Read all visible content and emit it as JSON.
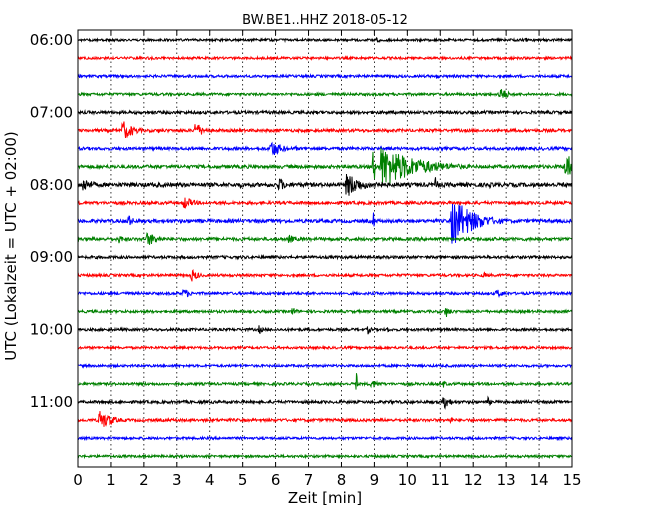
{
  "chart_data": {
    "type": "line",
    "title": "BW.BE1..HHZ 2018-05-12",
    "xlabel": "Zeit  [min]",
    "ylabel": "UTC (Lokalzeit = UTC + 02:00)",
    "xlim": [
      0,
      15
    ],
    "x_ticks": [
      "0",
      "1",
      "2",
      "3",
      "4",
      "5",
      "6",
      "7",
      "8",
      "9",
      "10",
      "11",
      "12",
      "13",
      "14",
      "15"
    ],
    "y_ticks": [
      "06:00",
      "07:00",
      "08:00",
      "09:00",
      "10:00",
      "11:00"
    ],
    "grid": true,
    "colors": [
      "#000000",
      "#ff0000",
      "#0000ff",
      "#008000"
    ],
    "trace_interval_min": 15,
    "start_time": "06:00",
    "traces": [
      {
        "start": "06:00",
        "color": "#000000",
        "noise": 1.2,
        "events": [
          {
            "t": 9.05,
            "amp": 6,
            "dur": 0.15
          },
          {
            "t": 13.6,
            "amp": 3,
            "dur": 0.1
          }
        ]
      },
      {
        "start": "06:15",
        "color": "#ff0000",
        "noise": 1.2,
        "events": []
      },
      {
        "start": "06:30",
        "color": "#0000ff",
        "noise": 1.3,
        "events": [
          {
            "t": 10.9,
            "amp": 4,
            "dur": 0.1
          }
        ]
      },
      {
        "start": "06:45",
        "color": "#008000",
        "noise": 1.3,
        "events": [
          {
            "t": 12.8,
            "amp": 9,
            "dur": 0.4
          }
        ]
      },
      {
        "start": "07:00",
        "color": "#000000",
        "noise": 1.5,
        "events": []
      },
      {
        "start": "07:15",
        "color": "#ff0000",
        "noise": 1.5,
        "events": [
          {
            "t": 1.35,
            "amp": 11,
            "dur": 0.6
          },
          {
            "t": 2.45,
            "amp": 3,
            "dur": 0.1
          },
          {
            "t": 3.55,
            "amp": 9,
            "dur": 0.5
          }
        ]
      },
      {
        "start": "07:30",
        "color": "#0000ff",
        "noise": 1.5,
        "events": [
          {
            "t": 5.85,
            "amp": 10,
            "dur": 0.6
          },
          {
            "t": 6.6,
            "amp": 3,
            "dur": 0.2
          }
        ]
      },
      {
        "start": "07:45",
        "color": "#008000",
        "noise": 1.7,
        "events": [
          {
            "t": 8.97,
            "amp": 60,
            "dur": 0.05
          },
          {
            "t": 9.2,
            "amp": 22,
            "dur": 2.0
          },
          {
            "t": 9.65,
            "amp": 18,
            "dur": 0.6
          },
          {
            "t": 14.8,
            "amp": 14,
            "dur": 0.8
          }
        ]
      },
      {
        "start": "08:00",
        "color": "#000000",
        "noise": 2.0,
        "events": [
          {
            "t": 0.15,
            "amp": 8,
            "dur": 0.6
          },
          {
            "t": 2.4,
            "amp": 4,
            "dur": 0.1
          },
          {
            "t": 4.9,
            "amp": 4,
            "dur": 0.2
          },
          {
            "t": 6.1,
            "amp": 8,
            "dur": 0.4
          },
          {
            "t": 8.15,
            "amp": 14,
            "dur": 0.8
          },
          {
            "t": 9.05,
            "amp": 8,
            "dur": 0.3
          },
          {
            "t": 10.85,
            "amp": 8,
            "dur": 0.2
          },
          {
            "t": 11.5,
            "amp": 4,
            "dur": 0.2
          },
          {
            "t": 12.5,
            "amp": 4,
            "dur": 0.1
          }
        ]
      },
      {
        "start": "08:15",
        "color": "#ff0000",
        "noise": 1.5,
        "events": [
          {
            "t": 3.2,
            "amp": 7,
            "dur": 0.6
          },
          {
            "t": 6.3,
            "amp": 3,
            "dur": 0.1
          }
        ]
      },
      {
        "start": "08:30",
        "color": "#0000ff",
        "noise": 1.7,
        "events": [
          {
            "t": 8.97,
            "amp": 14,
            "dur": 0.05
          },
          {
            "t": 1.5,
            "amp": 8,
            "dur": 0.3
          },
          {
            "t": 6.15,
            "amp": 4,
            "dur": 0.2
          },
          {
            "t": 11.35,
            "amp": 26,
            "dur": 1.2
          }
        ]
      },
      {
        "start": "08:45",
        "color": "#008000",
        "noise": 1.6,
        "events": [
          {
            "t": 1.25,
            "amp": 5,
            "dur": 0.3
          },
          {
            "t": 2.1,
            "amp": 8,
            "dur": 0.6
          },
          {
            "t": 6.4,
            "amp": 5,
            "dur": 0.4
          }
        ]
      },
      {
        "start": "09:00",
        "color": "#000000",
        "noise": 1.4,
        "events": []
      },
      {
        "start": "09:15",
        "color": "#ff0000",
        "noise": 1.3,
        "events": [
          {
            "t": 3.45,
            "amp": 7,
            "dur": 0.4
          },
          {
            "t": 12.3,
            "amp": 4,
            "dur": 0.3
          }
        ]
      },
      {
        "start": "09:30",
        "color": "#0000ff",
        "noise": 1.3,
        "events": [
          {
            "t": 1.35,
            "amp": 3,
            "dur": 0.1
          },
          {
            "t": 3.2,
            "amp": 6,
            "dur": 0.4
          },
          {
            "t": 12.7,
            "amp": 5,
            "dur": 0.4
          }
        ]
      },
      {
        "start": "09:45",
        "color": "#008000",
        "noise": 1.3,
        "events": [
          {
            "t": 6.5,
            "amp": 5,
            "dur": 0.3
          },
          {
            "t": 11.15,
            "amp": 7,
            "dur": 0.3
          }
        ]
      },
      {
        "start": "10:00",
        "color": "#000000",
        "noise": 1.3,
        "events": [
          {
            "t": 5.5,
            "amp": 5,
            "dur": 0.2
          },
          {
            "t": 8.8,
            "amp": 5,
            "dur": 0.2
          },
          {
            "t": 9.4,
            "amp": 4,
            "dur": 0.1
          }
        ]
      },
      {
        "start": "10:15",
        "color": "#ff0000",
        "noise": 1.2,
        "events": []
      },
      {
        "start": "10:30",
        "color": "#0000ff",
        "noise": 1.2,
        "events": []
      },
      {
        "start": "10:45",
        "color": "#008000",
        "noise": 1.3,
        "events": [
          {
            "t": 8.45,
            "amp": 16,
            "dur": 0.05
          },
          {
            "t": 8.9,
            "amp": 5,
            "dur": 0.5
          },
          {
            "t": 11.1,
            "amp": 4,
            "dur": 0.2
          }
        ]
      },
      {
        "start": "11:00",
        "color": "#000000",
        "noise": 1.4,
        "events": [
          {
            "t": 9.5,
            "amp": 4,
            "dur": 0.1
          },
          {
            "t": 11.1,
            "amp": 8,
            "dur": 0.4
          },
          {
            "t": 12.45,
            "amp": 5,
            "dur": 0.2
          },
          {
            "t": 13.7,
            "amp": 3,
            "dur": 0.1
          }
        ]
      },
      {
        "start": "11:15",
        "color": "#ff0000",
        "noise": 1.4,
        "events": [
          {
            "t": 0.65,
            "amp": 11,
            "dur": 0.7
          },
          {
            "t": 7.0,
            "amp": 3,
            "dur": 0.1
          },
          {
            "t": 11.3,
            "amp": 4,
            "dur": 0.2
          }
        ]
      },
      {
        "start": "11:30",
        "color": "#0000ff",
        "noise": 1.2,
        "events": [
          {
            "t": 12.6,
            "amp": 2,
            "dur": 0.5
          }
        ]
      },
      {
        "start": "11:45",
        "color": "#008000",
        "noise": 1.2,
        "events": []
      }
    ]
  }
}
